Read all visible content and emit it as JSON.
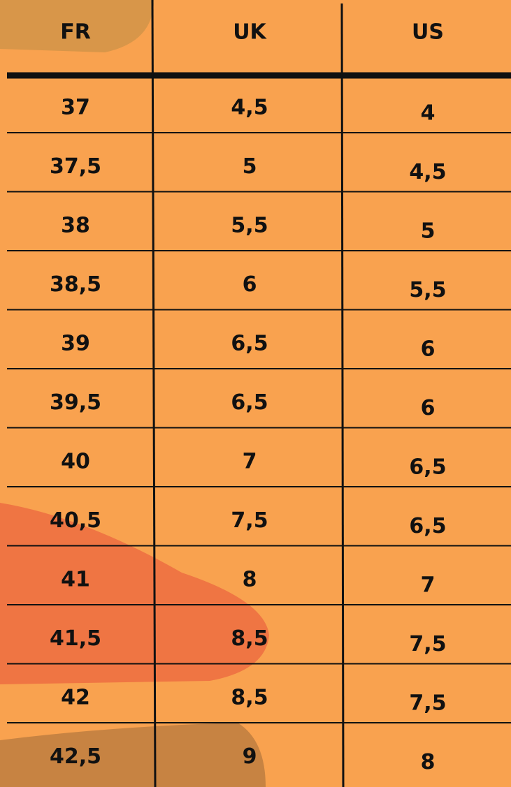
{
  "table": {
    "header": [
      "FR",
      "UK",
      "US"
    ],
    "rows": [
      [
        "37",
        "4,5",
        "4"
      ],
      [
        "37,5",
        "5",
        "4,5"
      ],
      [
        "38",
        "5,5",
        "5"
      ],
      [
        "38,5",
        "6",
        "5,5"
      ],
      [
        "39",
        "6,5",
        "6"
      ],
      [
        "39,5",
        "6,5",
        "6"
      ],
      [
        "40",
        "7",
        "6,5"
      ],
      [
        "40,5",
        "7,5",
        "6,5"
      ],
      [
        "41",
        "8",
        "7"
      ],
      [
        "41,5",
        "8,5",
        "7,5"
      ],
      [
        "42",
        "8,5",
        "7,5"
      ],
      [
        "42,5",
        "9",
        "8"
      ]
    ]
  }
}
